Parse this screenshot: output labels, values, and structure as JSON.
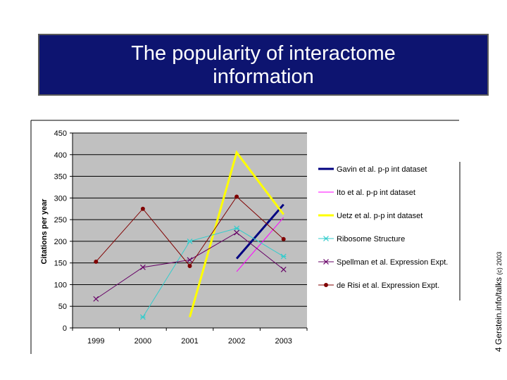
{
  "slide": {
    "title_line1": "The popularity of interactome",
    "title_line2": "information",
    "side_note_main": "4 Gerstein.info/talks",
    "side_note_small": "(c) 2003"
  },
  "colors": {
    "title_bg": "#0d1470",
    "plot_bg": "#c0c0c0"
  },
  "chart_data": {
    "type": "line",
    "title": "",
    "xlabel": "",
    "ylabel": "Citations per year",
    "categories": [
      "1999",
      "2000",
      "2001",
      "2002",
      "2003"
    ],
    "yticks": [
      0,
      50,
      100,
      150,
      200,
      250,
      300,
      350,
      400,
      450
    ],
    "ylim": [
      0,
      450
    ],
    "grid": "horizontal major gridlines",
    "legend": "right",
    "series": [
      {
        "name": "Gavin et al. p-p int dataset",
        "color": "#000080",
        "marker": "none",
        "width": 3,
        "values": [
          null,
          null,
          null,
          160,
          285
        ]
      },
      {
        "name": "Ito et al. p-p int dataset",
        "color": "#ff00ff",
        "marker": "none",
        "width": 1,
        "values": [
          null,
          null,
          null,
          130,
          255
        ]
      },
      {
        "name": "Uetz et al. p-p int dataset",
        "color": "#ffff00",
        "marker": "none",
        "width": 3,
        "values": [
          null,
          null,
          25,
          405,
          262
        ]
      },
      {
        "name": "Ribosome Structure",
        "color": "#33cccc",
        "marker": "asterisk",
        "width": 1,
        "values": [
          null,
          25,
          200,
          230,
          165
        ]
      },
      {
        "name": "Spellman et al. Expression Expt.",
        "color": "#660066",
        "marker": "x",
        "width": 1,
        "values": [
          67,
          140,
          157,
          220,
          135
        ]
      },
      {
        "name": "de Risi et al. Expression Expt.",
        "color": "#800000",
        "marker": "circle",
        "width": 1,
        "values": [
          153,
          275,
          143,
          303,
          205
        ]
      }
    ]
  }
}
